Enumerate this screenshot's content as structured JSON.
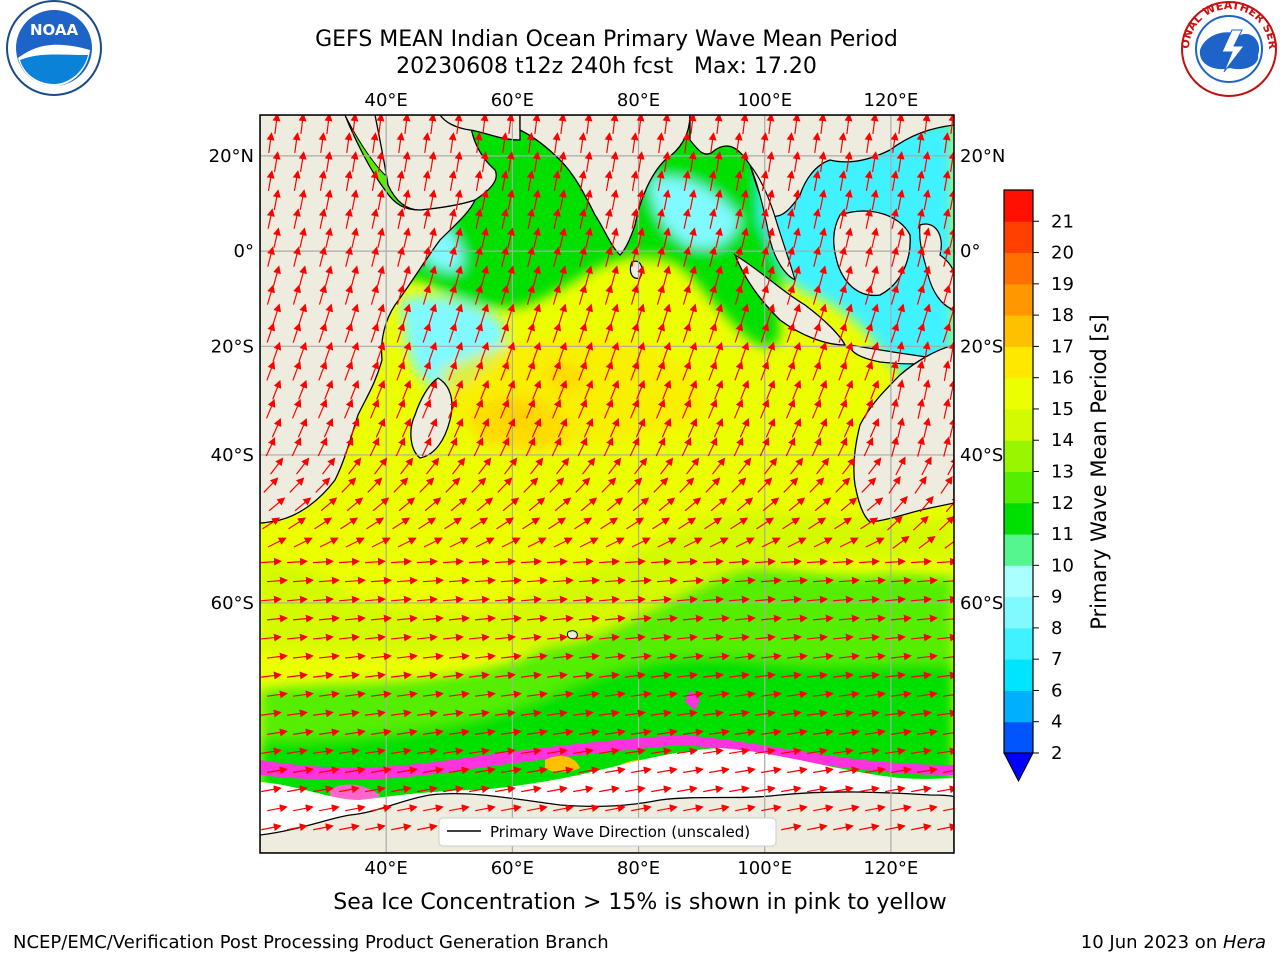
{
  "title": {
    "line1": "GEFS MEAN Indian Ocean Primary Wave Mean Period",
    "line2": "20230608 t12z 240h fcst   Max: 17.20"
  },
  "logos": {
    "left": {
      "icon": "noaa-logo-icon",
      "text": "NOAA"
    },
    "right": {
      "icon": "nws-logo-icon",
      "text": "NATIONAL WEATHER SERVICE"
    }
  },
  "map": {
    "lon_ticks": [
      "40°E",
      "60°E",
      "80°E",
      "100°E",
      "120°E"
    ],
    "lat_ticks": [
      "20°N",
      "0°",
      "20°S",
      "40°S",
      "60°S"
    ],
    "lon_range": [
      20,
      130
    ],
    "lat_range": [
      -78,
      28
    ],
    "land_color": "#eeecde",
    "ice_color": "#ffffff",
    "legend_label": "Primary Wave Direction (unscaled)",
    "arrow_color": "#ff0000"
  },
  "colorbar": {
    "label": "Primary Wave Mean Period [s]",
    "ticks": [
      "2",
      "4",
      "6",
      "7",
      "8",
      "9",
      "10",
      "11",
      "12",
      "13",
      "14",
      "15",
      "16",
      "17",
      "18",
      "19",
      "20",
      "21"
    ],
    "colors": [
      "#0055ff",
      "#00b0ff",
      "#00e5ff",
      "#40f2ff",
      "#80faff",
      "#aaffff",
      "#55f590",
      "#00e000",
      "#55ee00",
      "#99f500",
      "#d4fa00",
      "#ecff00",
      "#ffe800",
      "#ffc000",
      "#ff9800",
      "#ff7000",
      "#ff4000",
      "#ff1000"
    ],
    "under_color": "#0000ff"
  },
  "caption": "Sea Ice Concentration > 15% is shown in pink to yellow",
  "footer": {
    "left": "NCEP/EMC/Verification Post Processing Product Generation Branch",
    "right_prefix": "10 Jun 2023 on ",
    "right_machine": "Hera"
  }
}
